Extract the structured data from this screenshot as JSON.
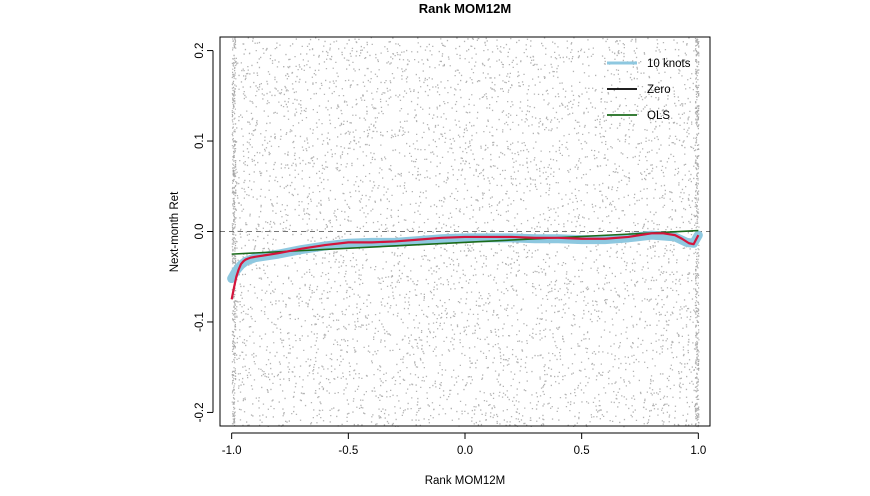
{
  "chart_data": {
    "type": "scatter",
    "title": "Rank MOM12M",
    "xlabel": "Rank MOM12M",
    "ylabel": "Next-month Ret",
    "xlim": [
      -1.05,
      1.05
    ],
    "ylim": [
      -0.215,
      0.215
    ],
    "x_ticks": [
      -1.0,
      -0.5,
      0.0,
      0.5,
      1.0
    ],
    "x_tick_labels": [
      "-1.0",
      "-0.5",
      "0.0",
      "0.5",
      "1.0"
    ],
    "y_ticks": [
      -0.2,
      -0.1,
      0.0,
      0.1,
      0.2
    ],
    "y_tick_labels": [
      "-0.2",
      "-0.1",
      "0.0",
      "0.1",
      "0.2"
    ],
    "grid": false,
    "legend_position": "top-right",
    "reference_line": {
      "y": 0.0,
      "style": "dashed",
      "color": "#777777"
    },
    "scatter": {
      "description": "dense cloud of small gray points filling x in [-1, 1] and y beyond [-0.2, 0.2]",
      "color": "#9a9a9a"
    },
    "series": [
      {
        "name": "10 knots",
        "color": "#8ec8e0",
        "x": [
          -1.0,
          -0.98,
          -0.96,
          -0.94,
          -0.92,
          -0.9,
          -0.85,
          -0.8,
          -0.7,
          -0.6,
          -0.5,
          -0.4,
          -0.3,
          -0.2,
          -0.1,
          0.0,
          0.1,
          0.2,
          0.3,
          0.4,
          0.5,
          0.6,
          0.7,
          0.8,
          0.9,
          0.95,
          0.98,
          1.0
        ],
        "values": [
          -0.052,
          -0.043,
          -0.037,
          -0.033,
          -0.031,
          -0.029,
          -0.027,
          -0.025,
          -0.02,
          -0.016,
          -0.013,
          -0.012,
          -0.012,
          -0.01,
          -0.008,
          -0.007,
          -0.007,
          -0.007,
          -0.008,
          -0.008,
          -0.009,
          -0.009,
          -0.007,
          -0.004,
          -0.006,
          -0.012,
          -0.013,
          -0.004
        ]
      },
      {
        "name": "Zero",
        "color": "#000000",
        "x": [
          -1.0,
          1.0
        ],
        "values": [
          0.0,
          0.0
        ]
      },
      {
        "name": "OLS",
        "color": "#1b6b1b",
        "x": [
          -1.0,
          1.0
        ],
        "values": [
          -0.025,
          0.001
        ]
      },
      {
        "name": "",
        "color": "#d4143c",
        "x": [
          -1.0,
          -0.99,
          -0.98,
          -0.97,
          -0.96,
          -0.95,
          -0.94,
          -0.93,
          -0.92,
          -0.9,
          -0.85,
          -0.8,
          -0.7,
          -0.6,
          -0.5,
          -0.4,
          -0.3,
          -0.2,
          -0.1,
          0.0,
          0.1,
          0.2,
          0.3,
          0.4,
          0.5,
          0.6,
          0.7,
          0.8,
          0.85,
          0.9,
          0.93,
          0.96,
          0.98,
          1.0
        ],
        "values": [
          -0.075,
          -0.062,
          -0.05,
          -0.042,
          -0.036,
          -0.033,
          -0.031,
          -0.03,
          -0.029,
          -0.028,
          -0.026,
          -0.024,
          -0.019,
          -0.015,
          -0.012,
          -0.012,
          -0.011,
          -0.009,
          -0.007,
          -0.006,
          -0.006,
          -0.006,
          -0.007,
          -0.007,
          -0.008,
          -0.008,
          -0.006,
          -0.002,
          -0.002,
          -0.004,
          -0.008,
          -0.013,
          -0.014,
          -0.004
        ]
      }
    ]
  }
}
